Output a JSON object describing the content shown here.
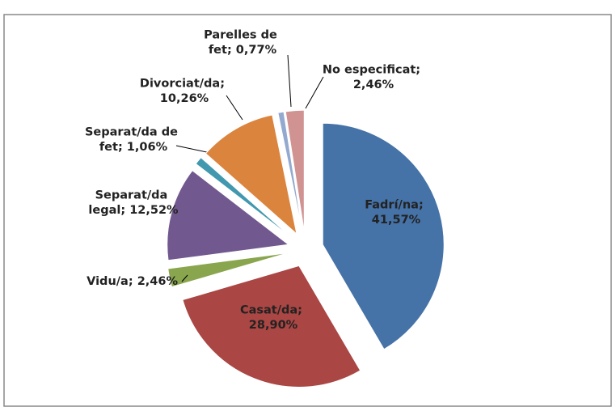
{
  "chart_data": {
    "type": "pie",
    "values": [
      41.57,
      28.9,
      2.46,
      12.52,
      1.06,
      10.26,
      0.77,
      2.46
    ],
    "value_labels": [
      "Fadrí/na; 41,57%",
      "Casat/da; 28,90%",
      "Vidu/a; 2,46%",
      "Separat/da legal; 12,52%",
      "Separat/da de fet; 1,06%",
      "Divorciat/da; 10,26%",
      "Parelles de fet; 0,77%",
      "No especificat; 2,46%"
    ],
    "colors": [
      "#4572a7",
      "#aa4643",
      "#89a54e",
      "#71588f",
      "#4198af",
      "#db843d",
      "#93a9cf",
      "#d19392"
    ]
  }
}
